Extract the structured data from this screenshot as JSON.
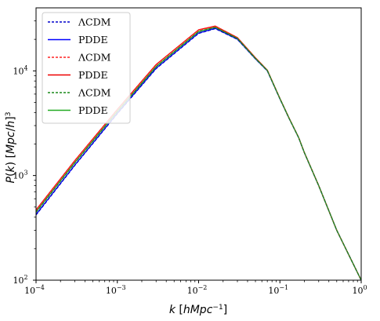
{
  "chart_data": {
    "type": "line",
    "xlabel": "k [hMpc⁻¹]",
    "ylabel": "P(k) [Mpc/h]³",
    "xscale": "log",
    "yscale": "log",
    "xlim": [
      0.0001,
      1
    ],
    "ylim": [
      100,
      40000
    ],
    "x_ticks": [
      {
        "value": 0.0001,
        "base": "10",
        "exp": "−4"
      },
      {
        "value": 0.001,
        "base": "10",
        "exp": "−3"
      },
      {
        "value": 0.01,
        "base": "10",
        "exp": "−2"
      },
      {
        "value": 0.1,
        "base": "10",
        "exp": "−1"
      },
      {
        "value": 1,
        "base": "10",
        "exp": "0"
      }
    ],
    "y_ticks": [
      {
        "value": 100,
        "base": "10",
        "exp": "2"
      },
      {
        "value": 1000,
        "base": "10",
        "exp": "3"
      },
      {
        "value": 10000,
        "base": "10",
        "exp": "4"
      }
    ],
    "grid": false,
    "legend_position": "upper-left",
    "series": [
      {
        "name": "ΛCDM",
        "color": "#0000cc",
        "style": "dashed",
        "x": [
          0.0001,
          0.0003,
          0.001,
          0.003,
          0.01,
          0.016,
          0.03,
          0.05,
          0.07,
          0.1,
          0.13,
          0.17,
          0.2,
          0.3,
          0.5,
          1.0
        ],
        "y": [
          420,
          1250,
          3900,
          10500,
          22800,
          25300,
          20000,
          13000,
          10000,
          5400,
          3500,
          2300,
          1650,
          800,
          300,
          100
        ]
      },
      {
        "name": "PDDE",
        "color": "#0000ff",
        "style": "solid",
        "x": [
          0.0001,
          0.0003,
          0.001,
          0.003,
          0.01,
          0.016,
          0.03,
          0.05,
          0.07,
          0.1,
          0.13,
          0.17,
          0.2,
          0.3,
          0.5,
          1.0
        ],
        "y": [
          425,
          1260,
          3930,
          10600,
          23000,
          25500,
          20100,
          13050,
          10020,
          5410,
          3505,
          2302,
          1652,
          801,
          300,
          100
        ]
      },
      {
        "name": "ΛCDM",
        "color": "#ff2222",
        "style": "dashed",
        "x": [
          0.0001,
          0.0003,
          0.001,
          0.003,
          0.01,
          0.016,
          0.03,
          0.05,
          0.07,
          0.1,
          0.13,
          0.17,
          0.2,
          0.3,
          0.5,
          1.0
        ],
        "y": [
          465,
          1380,
          4250,
          11400,
          24500,
          26600,
          20700,
          13300,
          10150,
          5450,
          3520,
          2310,
          1655,
          802,
          300,
          100
        ]
      },
      {
        "name": "PDDE",
        "color": "#ee0000",
        "style": "solid",
        "x": [
          0.0001,
          0.0003,
          0.001,
          0.003,
          0.01,
          0.016,
          0.03,
          0.05,
          0.07,
          0.1,
          0.13,
          0.17,
          0.2,
          0.3,
          0.5,
          1.0
        ],
        "y": [
          470,
          1390,
          4280,
          11500,
          24700,
          26800,
          20800,
          13350,
          10170,
          5460,
          3525,
          2312,
          1656,
          802,
          300,
          100
        ]
      },
      {
        "name": "ΛCDM",
        "color": "#1a8a1a",
        "style": "dashed",
        "x": [
          0.0001,
          0.0003,
          0.001,
          0.003,
          0.01,
          0.016,
          0.03,
          0.05,
          0.07,
          0.1,
          0.13,
          0.17,
          0.2,
          0.3,
          0.5,
          1.0
        ],
        "y": [
          445,
          1320,
          4080,
          10950,
          23700,
          26000,
          20400,
          13150,
          10080,
          5430,
          3510,
          2305,
          1653,
          801,
          300,
          100
        ]
      },
      {
        "name": "PDDE",
        "color": "#22aa22",
        "style": "solid",
        "x": [
          0.0001,
          0.0003,
          0.001,
          0.003,
          0.01,
          0.016,
          0.03,
          0.05,
          0.07,
          0.1,
          0.13,
          0.17,
          0.2,
          0.3,
          0.5,
          1.0
        ],
        "y": [
          450,
          1330,
          4100,
          11000,
          23800,
          26100,
          20450,
          13180,
          10090,
          5435,
          3512,
          2306,
          1654,
          801,
          300,
          100
        ]
      }
    ]
  }
}
